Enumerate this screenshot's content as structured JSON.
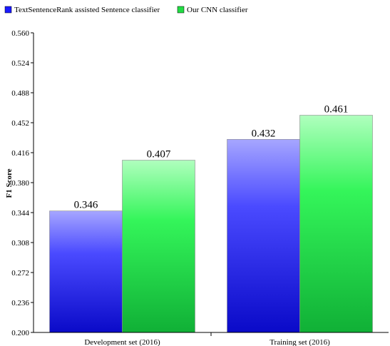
{
  "chart_data": {
    "type": "bar",
    "title": "",
    "xlabel": "",
    "ylabel": "F1 Score",
    "ylim": [
      0.2,
      0.56
    ],
    "yticks": [
      "0.200",
      "0.236",
      "0.272",
      "0.308",
      "0.344",
      "0.380",
      "0.416",
      "0.452",
      "0.488",
      "0.524",
      "0.560"
    ],
    "categories": [
      "Development set (2016)",
      "Training set (2016)"
    ],
    "series": [
      {
        "name": "TextSentenceRank assisted Sentence classifier",
        "values": [
          0.346,
          0.432
        ],
        "labels": [
          "0.346",
          "0.432"
        ],
        "color": "#1a1aff"
      },
      {
        "name": "Our CNN classifier",
        "values": [
          0.407,
          0.461
        ],
        "labels": [
          "0.407",
          "0.461"
        ],
        "color": "#22dd44"
      }
    ],
    "legend_position": "top-left",
    "grid": false
  }
}
